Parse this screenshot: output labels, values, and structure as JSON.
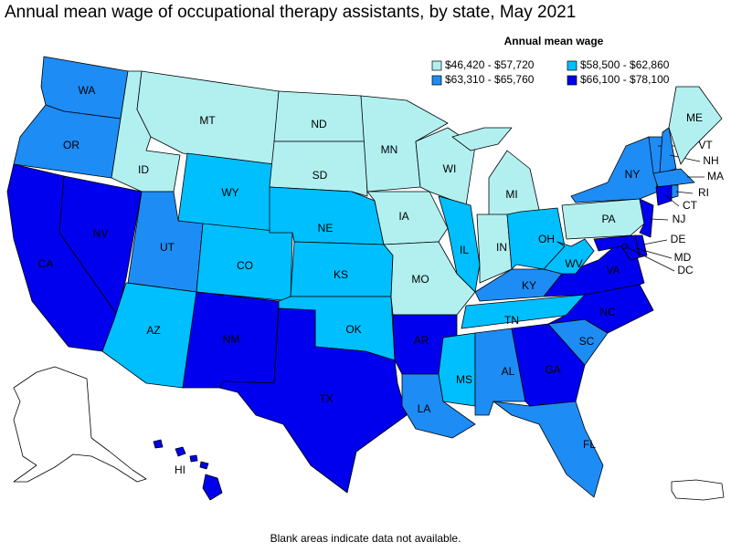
{
  "title": "Annual mean wage of occupational therapy assistants, by state, May 2021",
  "legend": {
    "title": "Annual mean wage",
    "bins": [
      {
        "label": "$46,420 - $57,720",
        "color": "#b2f0f0"
      },
      {
        "label": "$58,500 - $62,860",
        "color": "#00bfff"
      },
      {
        "label": "$63,310 - $65,760",
        "color": "#1e8cf5"
      },
      {
        "label": "$66,100 - $78,100",
        "color": "#0000ee"
      }
    ]
  },
  "states": [
    {
      "label": "WA",
      "color": "#1e8cf5"
    },
    {
      "label": "OR",
      "color": "#1e8cf5"
    },
    {
      "label": "CA",
      "color": "#0000ee"
    },
    {
      "label": "NV",
      "color": "#0000ee"
    },
    {
      "label": "ID",
      "color": "#b2f0f0"
    },
    {
      "label": "MT",
      "color": "#b2f0f0"
    },
    {
      "label": "WY",
      "color": "#00bfff"
    },
    {
      "label": "UT",
      "color": "#1e8cf5"
    },
    {
      "label": "CO",
      "color": "#00bfff"
    },
    {
      "label": "AZ",
      "color": "#00bfff"
    },
    {
      "label": "NM",
      "color": "#0000ee"
    },
    {
      "label": "ND",
      "color": "#b2f0f0"
    },
    {
      "label": "SD",
      "color": "#b2f0f0"
    },
    {
      "label": "NE",
      "color": "#00bfff"
    },
    {
      "label": "KS",
      "color": "#00bfff"
    },
    {
      "label": "OK",
      "color": "#00bfff"
    },
    {
      "label": "TX",
      "color": "#0000ee"
    },
    {
      "label": "MN",
      "color": "#b2f0f0"
    },
    {
      "label": "IA",
      "color": "#b2f0f0"
    },
    {
      "label": "MO",
      "color": "#b2f0f0"
    },
    {
      "label": "AR",
      "color": "#0000ee"
    },
    {
      "label": "LA",
      "color": "#1e8cf5"
    },
    {
      "label": "WI",
      "color": "#b2f0f0"
    },
    {
      "label": "IL",
      "color": "#00bfff"
    },
    {
      "label": "MI",
      "color": "#b2f0f0"
    },
    {
      "label": "IN",
      "color": "#b2f0f0"
    },
    {
      "label": "OH",
      "color": "#00bfff"
    },
    {
      "label": "KY",
      "color": "#1e8cf5"
    },
    {
      "label": "TN",
      "color": "#00bfff"
    },
    {
      "label": "MS",
      "color": "#00bfff"
    },
    {
      "label": "AL",
      "color": "#1e8cf5"
    },
    {
      "label": "GA",
      "color": "#0000ee"
    },
    {
      "label": "FL",
      "color": "#1e8cf5"
    },
    {
      "label": "SC",
      "color": "#1e8cf5"
    },
    {
      "label": "NC",
      "color": "#0000ee"
    },
    {
      "label": "VA",
      "color": "#0000ee"
    },
    {
      "label": "WV",
      "color": "#00bfff"
    },
    {
      "label": "PA",
      "color": "#b2f0f0"
    },
    {
      "label": "NY",
      "color": "#1e8cf5"
    },
    {
      "label": "NJ",
      "color": "#0000ee"
    },
    {
      "label": "DE",
      "color": "#0000ee"
    },
    {
      "label": "MD",
      "color": "#0000ee"
    },
    {
      "label": "VT",
      "color": "#1e8cf5"
    },
    {
      "label": "NH",
      "color": "#1e8cf5"
    },
    {
      "label": "ME",
      "color": "#b2f0f0"
    },
    {
      "label": "MA",
      "color": "#1e8cf5"
    },
    {
      "label": "CT",
      "color": "#0000ee"
    },
    {
      "label": "RI",
      "color": "#1e8cf5"
    },
    {
      "label": "DC",
      "color": "#0000ee"
    },
    {
      "label": "HI",
      "color": "#0000ee"
    }
  ],
  "footnote": "Blank areas indicate data not available."
}
